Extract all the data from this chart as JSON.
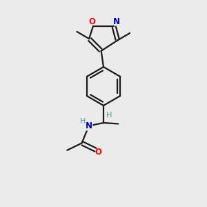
{
  "background_color": "#ebebeb",
  "bond_color": "#1a1a1a",
  "atom_colors": {
    "O": "#ff0000",
    "N_isoxazole": "#0000cc",
    "N_amide": "#0000cc",
    "H": "#4a9a9a",
    "C": "#1a1a1a"
  },
  "figsize": [
    3.0,
    3.0
  ],
  "dpi": 100,
  "lw": 1.6
}
